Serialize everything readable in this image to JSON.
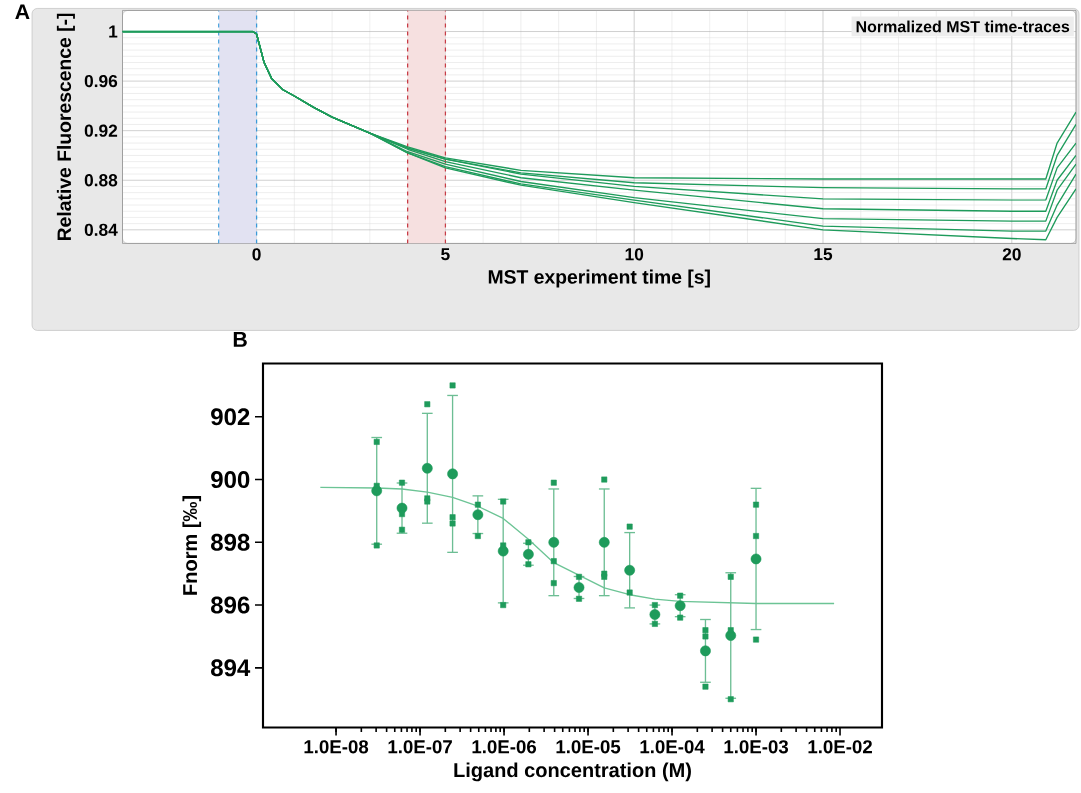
{
  "chart_data": [
    {
      "type": "line",
      "title": "A",
      "xlabel": "MST experiment time [s]",
      "ylabel": "Relative Fluorescence [-]",
      "xlim": [
        -3.55,
        21.7
      ],
      "ylim": [
        0.829,
        1.017
      ],
      "xticks": [
        0,
        5,
        10,
        15,
        20
      ],
      "yticks": [
        0.84,
        0.88,
        0.92,
        0.96,
        1
      ],
      "grid": true,
      "annotations": [
        "Normalized MST time-traces"
      ],
      "bands": [
        {
          "axis": "x",
          "from": -1,
          "to": 0,
          "color": "#e2e2f2"
        },
        {
          "axis": "x",
          "from": 4,
          "to": 5,
          "color": "#f6e0e0"
        }
      ],
      "ref_lines": [
        {
          "axis": "x",
          "value": -1,
          "color": "#3a9ad9",
          "line_style": "dashed"
        },
        {
          "axis": "x",
          "value": 0,
          "color": "#3a9ad9",
          "line_style": "dashed"
        },
        {
          "axis": "x",
          "value": 4,
          "color": "#c83c46",
          "line_style": "dashed"
        },
        {
          "axis": "x",
          "value": 5,
          "color": "#c83c46",
          "line_style": "dashed"
        }
      ],
      "series": [
        {
          "color": "#1e9b5b",
          "x": [
            -3.55,
            -0.1,
            0,
            0.2,
            0.4,
            0.7,
            1,
            1.5,
            2,
            3,
            4,
            5,
            7,
            10,
            15,
            20,
            20.9,
            21.2,
            21.7
          ],
          "values": [
            1.0,
            1.0,
            0.998,
            0.975,
            0.962,
            0.953,
            0.948,
            0.939,
            0.931,
            0.918,
            0.907,
            0.898,
            0.888,
            0.882,
            0.881,
            0.881,
            0.881,
            0.91,
            0.935
          ]
        },
        {
          "color": "#1e9b5b",
          "x": [
            -3.55,
            -0.1,
            0,
            0.2,
            0.4,
            0.7,
            1,
            1.5,
            2,
            3,
            4,
            5,
            7,
            10,
            15,
            20,
            20.9,
            21.2,
            21.7
          ],
          "values": [
            1.0,
            1.0,
            0.998,
            0.975,
            0.962,
            0.953,
            0.948,
            0.939,
            0.931,
            0.918,
            0.906,
            0.897,
            0.886,
            0.878,
            0.874,
            0.873,
            0.873,
            0.9,
            0.925
          ]
        },
        {
          "color": "#1e9b5b",
          "x": [
            -3.55,
            -0.1,
            0,
            0.2,
            0.4,
            0.7,
            1,
            1.5,
            2,
            3,
            4,
            5,
            7,
            10,
            15,
            20,
            20.9,
            21.2,
            21.7
          ],
          "values": [
            1.0,
            1.0,
            0.998,
            0.975,
            0.962,
            0.953,
            0.948,
            0.939,
            0.931,
            0.918,
            0.906,
            0.897,
            0.885,
            0.875,
            0.865,
            0.864,
            0.864,
            0.89,
            0.91
          ]
        },
        {
          "color": "#1e9b5b",
          "x": [
            -3.55,
            -0.1,
            0,
            0.2,
            0.4,
            0.7,
            1,
            1.5,
            2,
            3,
            4,
            5,
            7,
            10,
            15,
            20,
            20.9,
            21.2,
            21.7
          ],
          "values": [
            1.0,
            1.0,
            0.998,
            0.975,
            0.962,
            0.953,
            0.948,
            0.939,
            0.931,
            0.918,
            0.905,
            0.895,
            0.882,
            0.872,
            0.857,
            0.855,
            0.855,
            0.88,
            0.9
          ]
        },
        {
          "color": "#1e9b5b",
          "x": [
            -3.55,
            -0.1,
            0,
            0.2,
            0.4,
            0.7,
            1,
            1.5,
            2,
            3,
            4,
            5,
            7,
            10,
            15,
            20,
            20.9,
            21.2,
            21.7
          ],
          "values": [
            1.0,
            1.0,
            0.998,
            0.975,
            0.962,
            0.953,
            0.948,
            0.939,
            0.931,
            0.918,
            0.903,
            0.893,
            0.879,
            0.866,
            0.849,
            0.847,
            0.847,
            0.872,
            0.893
          ]
        },
        {
          "color": "#1e9b5b",
          "x": [
            -3.55,
            -0.1,
            0,
            0.2,
            0.4,
            0.7,
            1,
            1.5,
            2,
            3,
            4,
            5,
            7,
            10,
            15,
            20,
            20.9,
            21.2,
            21.7
          ],
          "values": [
            1.0,
            1.0,
            0.998,
            0.975,
            0.962,
            0.953,
            0.948,
            0.939,
            0.931,
            0.918,
            0.902,
            0.891,
            0.877,
            0.864,
            0.843,
            0.839,
            0.839,
            0.86,
            0.885
          ]
        },
        {
          "color": "#1e9b5b",
          "x": [
            -3.55,
            -0.1,
            0,
            0.2,
            0.4,
            0.7,
            1,
            1.5,
            2,
            3,
            4,
            5,
            7,
            10,
            15,
            20,
            20.9,
            21.2,
            21.7
          ],
          "values": [
            1.0,
            1.0,
            0.998,
            0.975,
            0.962,
            0.953,
            0.948,
            0.939,
            0.931,
            0.918,
            0.902,
            0.89,
            0.876,
            0.862,
            0.84,
            0.833,
            0.832,
            0.85,
            0.873
          ]
        }
      ]
    },
    {
      "type": "scatter",
      "title": "B",
      "xlabel": "Ligand concentration (M)",
      "ylabel": "Fnorm [‰]",
      "log": "x",
      "xlim": [
        1.35e-09,
        0.0316
      ],
      "ylim": [
        892.1,
        903.7
      ],
      "xticks": [
        {
          "value": 1e-08,
          "label": "1.0E-08"
        },
        {
          "value": 1e-07,
          "label": "1.0E-07"
        },
        {
          "value": 1e-06,
          "label": "1.0E-06"
        },
        {
          "value": 1e-05,
          "label": "1.0E-05"
        },
        {
          "value": 0.0001,
          "label": "1.0E-04"
        },
        {
          "value": 0.001,
          "label": "1.0E-03"
        },
        {
          "value": 0.01,
          "label": "1.0E-02"
        }
      ],
      "yticks": [
        894,
        896,
        898,
        900,
        902
      ],
      "series": [
        {
          "type": "scatter",
          "marker": "circle",
          "color": "#1e9b5b",
          "x": [
            3.05e-08,
            6.1e-08,
            1.22e-07,
            2.44e-07,
            4.88e-07,
            9.77e-07,
            1.95e-06,
            3.91e-06,
            7.81e-06,
            1.56e-05,
            3.13e-05,
            6.25e-05,
            0.000125,
            0.00025,
            0.0005,
            0.001
          ],
          "values": [
            899.64,
            899.09,
            900.36,
            900.18,
            898.88,
            897.72,
            897.62,
            898.0,
            896.56,
            898.0,
            897.11,
            895.7,
            895.98,
            894.54,
            895.03,
            897.47
          ],
          "errors": [
            1.7,
            0.8,
            1.75,
            2.5,
            0.6,
            1.65,
            0.35,
            1.7,
            0.35,
            1.7,
            1.2,
            0.3,
            0.35,
            1.0,
            2.0,
            2.25
          ]
        },
        {
          "type": "scatter",
          "marker": "square",
          "color": "#1e9b5b",
          "x": [
            3.05e-08,
            3.05e-08,
            3.05e-08,
            6.1e-08,
            6.1e-08,
            6.1e-08,
            1.22e-07,
            1.22e-07,
            1.22e-07,
            2.44e-07,
            2.44e-07,
            2.44e-07,
            4.88e-07,
            4.88e-07,
            9.77e-07,
            9.77e-07,
            9.77e-07,
            1.95e-06,
            1.95e-06,
            3.91e-06,
            3.91e-06,
            3.91e-06,
            7.81e-06,
            7.81e-06,
            1.56e-05,
            1.56e-05,
            1.56e-05,
            3.13e-05,
            3.13e-05,
            6.25e-05,
            6.25e-05,
            0.000125,
            0.000125,
            0.00025,
            0.00025,
            0.00025,
            0.0005,
            0.0005,
            0.0005,
            0.001,
            0.001,
            0.001
          ],
          "values": [
            901.2,
            899.8,
            897.9,
            899.9,
            898.9,
            898.4,
            902.4,
            899.4,
            899.3,
            903.0,
            898.8,
            898.6,
            899.2,
            898.2,
            899.3,
            897.9,
            896.0,
            898.0,
            897.3,
            899.9,
            897.4,
            896.7,
            896.9,
            896.2,
            900.0,
            897.0,
            896.9,
            898.5,
            896.4,
            896.0,
            895.4,
            896.3,
            895.6,
            895.2,
            895.0,
            893.4,
            896.9,
            895.2,
            893.0,
            899.2,
            898.2,
            894.9
          ]
        },
        {
          "type": "line",
          "color": "#6cc495",
          "x": [
            6.5e-09,
            3.05e-08,
            6.1e-08,
            1.22e-07,
            2.44e-07,
            4.88e-07,
            9.77e-07,
            1.95e-06,
            3.91e-06,
            7.81e-06,
            1.56e-05,
            3.13e-05,
            6.25e-05,
            0.000125,
            0.001,
            0.0085
          ],
          "values": [
            899.75,
            899.73,
            899.7,
            899.6,
            899.43,
            899.15,
            898.76,
            898.1,
            897.35,
            896.95,
            896.55,
            896.33,
            896.19,
            896.12,
            896.05,
            896.05
          ]
        }
      ]
    }
  ]
}
